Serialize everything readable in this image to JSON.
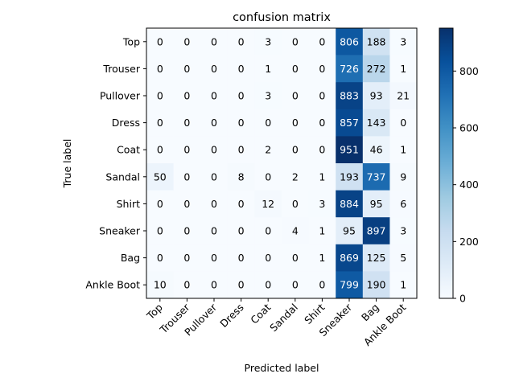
{
  "chart_data": {
    "type": "heatmap",
    "title": "confusion matrix",
    "xlabel": "Predicted label",
    "ylabel": "True label",
    "row_labels": [
      "Top",
      "Trouser",
      "Pullover",
      "Dress",
      "Coat",
      "Sandal",
      "Shirt",
      "Sneaker",
      "Bag",
      "Ankle Boot"
    ],
    "col_labels": [
      "Top",
      "Trouser",
      "Pullover",
      "Dress",
      "Coat",
      "Sandal",
      "Shirt",
      "Sneaker",
      "Bag",
      "Ankle Boot"
    ],
    "values": [
      [
        0,
        0,
        0,
        0,
        3,
        0,
        0,
        806,
        188,
        3
      ],
      [
        0,
        0,
        0,
        0,
        1,
        0,
        0,
        726,
        272,
        1
      ],
      [
        0,
        0,
        0,
        0,
        3,
        0,
        0,
        883,
        93,
        21
      ],
      [
        0,
        0,
        0,
        0,
        0,
        0,
        0,
        857,
        143,
        0
      ],
      [
        0,
        0,
        0,
        0,
        2,
        0,
        0,
        951,
        46,
        1
      ],
      [
        50,
        0,
        0,
        8,
        0,
        2,
        1,
        193,
        737,
        9
      ],
      [
        0,
        0,
        0,
        0,
        12,
        0,
        3,
        884,
        95,
        6
      ],
      [
        0,
        0,
        0,
        0,
        0,
        4,
        1,
        95,
        897,
        3
      ],
      [
        0,
        0,
        0,
        0,
        0,
        0,
        1,
        869,
        125,
        5
      ],
      [
        10,
        0,
        0,
        0,
        0,
        0,
        0,
        799,
        190,
        1
      ]
    ],
    "colormap": "Blues",
    "colorbar": {
      "min": 0,
      "max": 951,
      "ticks": [
        0,
        200,
        400,
        600,
        800
      ]
    },
    "grid": false
  }
}
